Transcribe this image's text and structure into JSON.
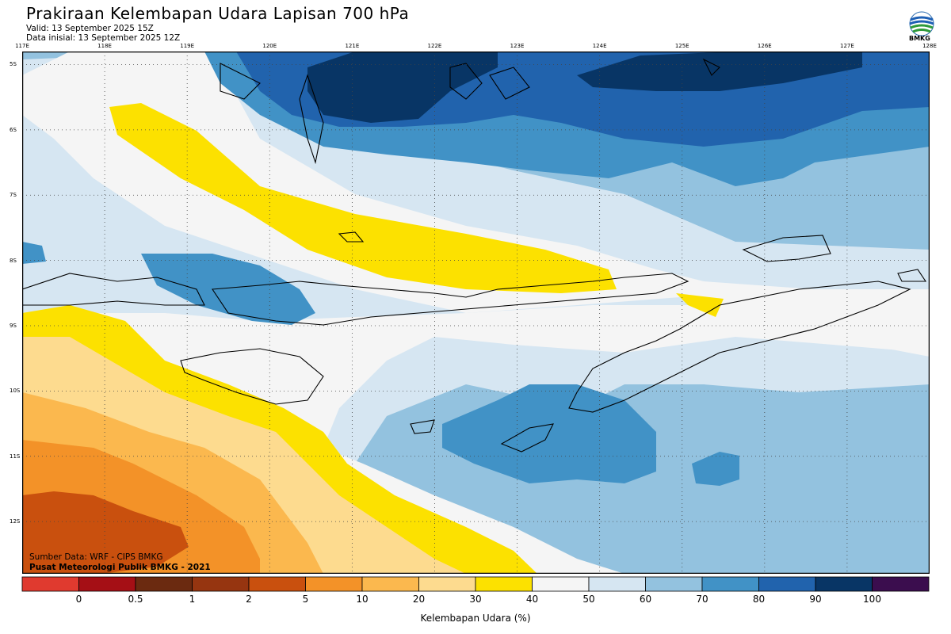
{
  "header": {
    "title": "Prakiraan Kelembapan Udara Lapisan 700 hPa",
    "valid": "Valid: 13 September 2025 15Z",
    "initial": "Data inisial: 13 September 2025 12Z"
  },
  "logo": {
    "text": "BMKG",
    "icon": "bmkg-globe-icon"
  },
  "map": {
    "lon_labels": [
      "117E",
      "118E",
      "119E",
      "120E",
      "121E",
      "122E",
      "123E",
      "124E",
      "125E",
      "126E",
      "127E",
      "128E"
    ],
    "lat_labels": [
      "5S",
      "6S",
      "7S",
      "8S",
      "9S",
      "10S",
      "11S",
      "12S"
    ],
    "lon_range": [
      117,
      128
    ],
    "lat_range": [
      -4.8,
      -12.8
    ],
    "grid": "dotted"
  },
  "footer": {
    "source": "Sumber Data: WRF - CIPS BMKG",
    "credit": "Pusat Meteorologi Publik BMKG - 2021"
  },
  "colorbar": {
    "title": "Kelembapan Udara (%)",
    "labels": [
      "0",
      "0.5",
      "1",
      "2",
      "5",
      "10",
      "20",
      "30",
      "40",
      "50",
      "60",
      "70",
      "80",
      "90",
      "100"
    ],
    "colors": [
      "#e03a2f",
      "#a50f15",
      "#6b2a10",
      "#963510",
      "#c9500e",
      "#f39228",
      "#fbb84e",
      "#fddb8f",
      "#fce100",
      "#f5f5f5",
      "#d6e6f2",
      "#93c2df",
      "#4192c6",
      "#2163ad",
      "#083565",
      "#3b0d4e"
    ]
  }
}
